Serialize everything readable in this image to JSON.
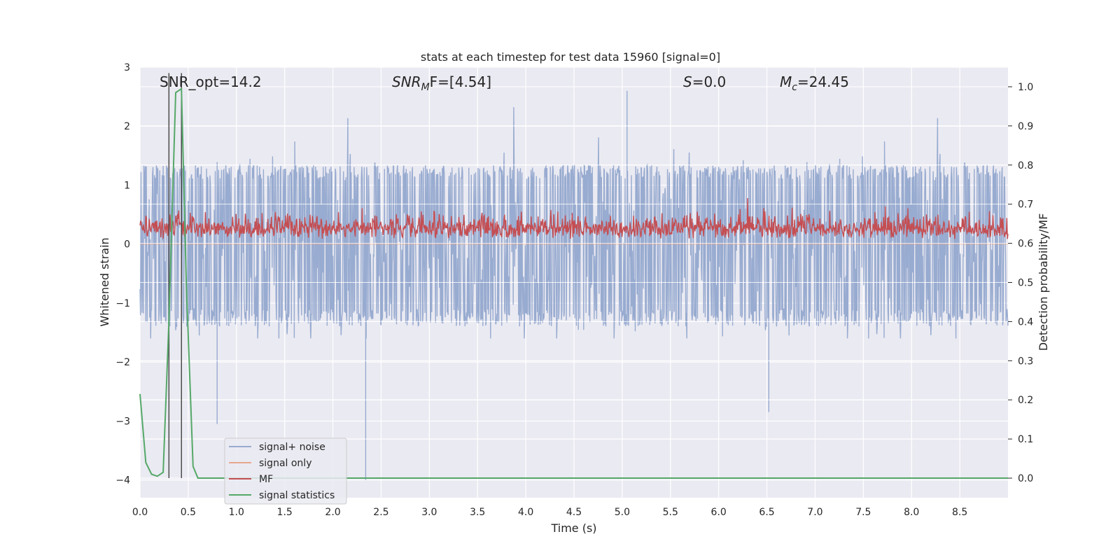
{
  "chart_data": {
    "type": "line",
    "title": "stats at each timestep for test data 15960 [signal=0]",
    "xlabel": "Time (s)",
    "ylabel_left": "Whitened strain",
    "ylabel_right": "Detection probability/MF",
    "xlim": [
      0.0,
      9.0
    ],
    "ylim_left": [
      -4.3,
      3.0
    ],
    "ylim_right": [
      -0.05,
      1.05
    ],
    "x_ticks": [
      "0.0",
      "0.5",
      "1.0",
      "1.5",
      "2.0",
      "2.5",
      "3.0",
      "3.5",
      "4.0",
      "4.5",
      "5.0",
      "5.5",
      "6.0",
      "6.5",
      "7.0",
      "7.5",
      "8.0",
      "8.5"
    ],
    "x_tick_values": [
      0.0,
      0.5,
      1.0,
      1.5,
      2.0,
      2.5,
      3.0,
      3.5,
      4.0,
      4.5,
      5.0,
      5.5,
      6.0,
      6.5,
      7.0,
      7.5,
      8.0,
      8.5
    ],
    "y_left_ticks": [
      "3",
      "2",
      "1",
      "0",
      "−1",
      "−2",
      "−3",
      "−4"
    ],
    "y_left_tick_values": [
      3,
      2,
      1,
      0,
      -1,
      -2,
      -3,
      -4
    ],
    "y_right_ticks": [
      "1.0",
      "0.9",
      "0.8",
      "0.7",
      "0.6",
      "0.5",
      "0.4",
      "0.3",
      "0.2",
      "0.1",
      "0.0"
    ],
    "y_right_tick_values": [
      1.0,
      0.9,
      0.8,
      0.7,
      0.6,
      0.5,
      0.4,
      0.3,
      0.2,
      0.1,
      0.0
    ],
    "grid": true,
    "annotations": {
      "snr_opt": "SNR_opt=14.2",
      "snr_mf_main": "SNR",
      "snr_mf_sub": "M",
      "snr_mf_rest": "F=[4.54]",
      "s_main": "S",
      "s_rest": "=0.0",
      "mc_main": "M",
      "mc_sub": "c",
      "mc_rest": "=24.45"
    },
    "vertical_markers": [
      0.3,
      0.43
    ],
    "legend": {
      "position": "lower-left",
      "entries": [
        "signal+ noise",
        "signal only",
        "MF",
        "signal statistics"
      ]
    },
    "series": [
      {
        "name": "signal+ noise",
        "axis": "left",
        "color": "#98abd0",
        "envelope": {
          "typical_low": -1.3,
          "typical_high": 1.3,
          "extreme_low": -4.0,
          "extreme_high": 2.6
        },
        "notable_points": [
          {
            "x": 2.34,
            "y": -4.0
          },
          {
            "x": 0.8,
            "y": -3.05
          },
          {
            "x": 6.52,
            "y": -2.85
          },
          {
            "x": 5.05,
            "y": 2.6
          }
        ]
      },
      {
        "name": "signal only",
        "axis": "left",
        "color": "#e6a88e",
        "x": [
          0.0,
          9.0
        ],
        "y": [
          0.0,
          0.0
        ]
      },
      {
        "name": "MF",
        "axis": "right",
        "color": "#c44e52",
        "envelope": {
          "typical_low": 0.6,
          "typical_high": 0.68,
          "extreme_low": 0.6,
          "extreme_high": 0.73
        }
      },
      {
        "name": "signal statistics",
        "axis": "right",
        "color": "#55a868",
        "x": [
          0.0,
          0.06,
          0.12,
          0.18,
          0.24,
          0.3,
          0.37,
          0.43,
          0.48,
          0.55,
          0.6,
          0.7,
          1.0,
          2.0,
          3.0,
          4.0,
          5.0,
          6.0,
          7.0,
          8.0,
          9.0
        ],
        "y": [
          0.215,
          0.04,
          0.01,
          0.005,
          0.015,
          0.4,
          0.985,
          0.995,
          0.5,
          0.03,
          0.0,
          0.0,
          0.0,
          0.0,
          0.0,
          0.0,
          0.0,
          0.0,
          0.0,
          0.0,
          0.0
        ]
      }
    ]
  }
}
